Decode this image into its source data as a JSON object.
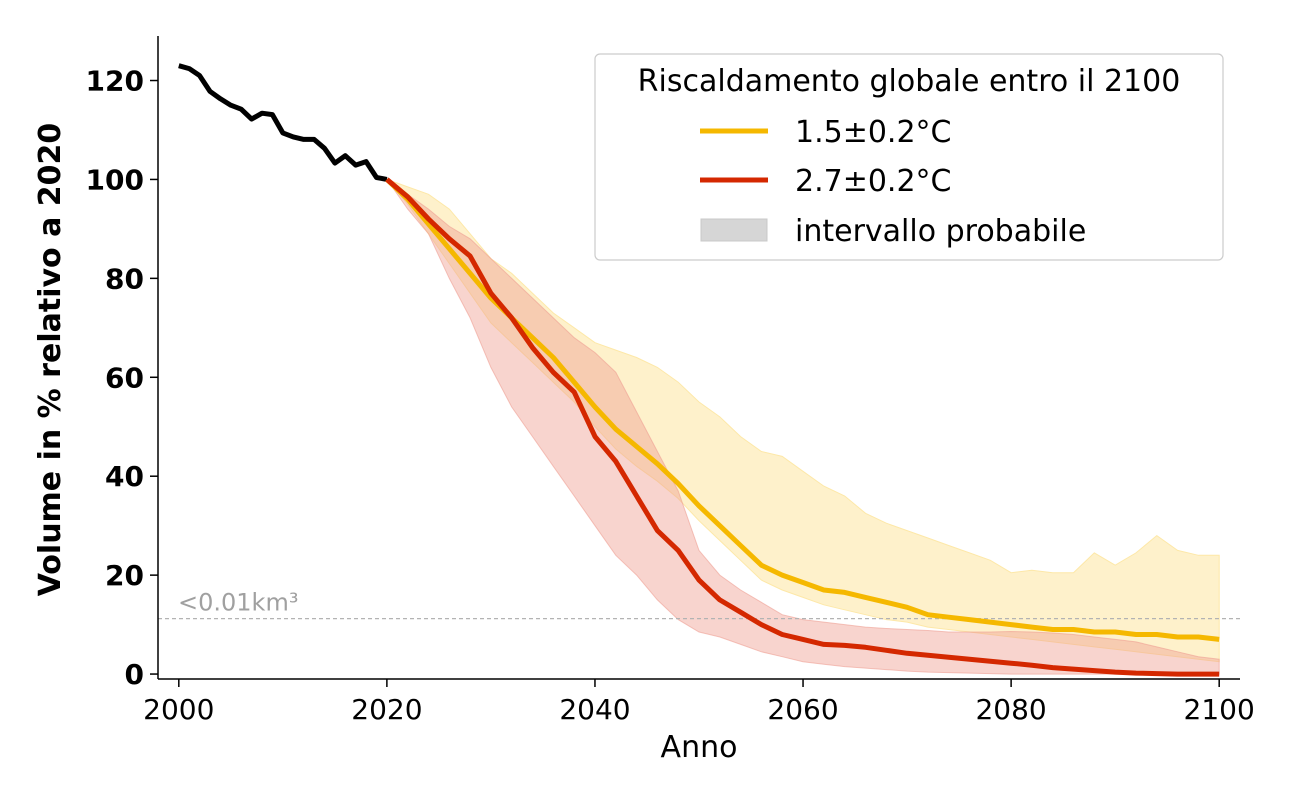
{
  "chart_data": {
    "type": "line",
    "xlabel": "Anno",
    "ylabel": "Volume in % relativo a 2020",
    "xlim": [
      1998,
      2102
    ],
    "ylim": [
      -1,
      129
    ],
    "xticks": [
      2000,
      2020,
      2040,
      2060,
      2080,
      2100
    ],
    "yticks": [
      0,
      20,
      40,
      60,
      80,
      100,
      120
    ],
    "grid": false,
    "legend": {
      "title": "Riscaldamento globale entro il 2100",
      "placement": "top-right",
      "range_label": "intervallo probabile"
    },
    "threshold": {
      "y": 11.2,
      "label": "<0.01km³"
    },
    "colors": {
      "historical": "#000000",
      "scenario_low": "#f5b800",
      "scenario_high": "#d42800",
      "band_low": "#fde8a8",
      "band_high": "#ef9f92",
      "legend_patch": "#d6d6d6",
      "threshold": "#b3b3b3"
    },
    "historical": {
      "x": [
        2000,
        2001,
        2002,
        2003,
        2004,
        2005,
        2006,
        2007,
        2008,
        2009,
        2010,
        2011,
        2012,
        2013,
        2014,
        2015,
        2016,
        2017,
        2018,
        2019,
        2020
      ],
      "y": [
        123,
        122.4,
        121,
        117.8,
        116.3,
        115,
        114.2,
        112.2,
        113.4,
        113.1,
        109.4,
        108.6,
        108.1,
        108.1,
        106.3,
        103.3,
        104.8,
        102.9,
        103.6,
        100.4,
        100
      ]
    },
    "series": [
      {
        "name": "1.5±0.2°C",
        "x": [
          2020,
          2022,
          2024,
          2026,
          2028,
          2030,
          2032,
          2034,
          2036,
          2038,
          2040,
          2042,
          2044,
          2046,
          2048,
          2050,
          2052,
          2054,
          2056,
          2058,
          2060,
          2062,
          2064,
          2066,
          2068,
          2070,
          2072,
          2074,
          2076,
          2078,
          2080,
          2082,
          2084,
          2086,
          2088,
          2090,
          2092,
          2094,
          2096,
          2098,
          2100
        ],
        "y": [
          100,
          96,
          91,
          86,
          81,
          76,
          72,
          68,
          64,
          59,
          54,
          49.5,
          46,
          42.5,
          38.5,
          34,
          30,
          26,
          22,
          20,
          18.5,
          17,
          16.5,
          15.5,
          14.5,
          13.5,
          12,
          11.5,
          11,
          10.5,
          10,
          9.5,
          9,
          9,
          8.5,
          8.5,
          8,
          8,
          7.5,
          7.5,
          7
        ],
        "band_lower": [
          100,
          95,
          89,
          83,
          77,
          71,
          67,
          63,
          59,
          55,
          50,
          45.5,
          42,
          39,
          35.5,
          31,
          27,
          23,
          19,
          17,
          15.5,
          14,
          13,
          12,
          11,
          10.5,
          9.5,
          9,
          8.5,
          8,
          7.5,
          7,
          6.5,
          6,
          5.5,
          5,
          4.5,
          4,
          3.5,
          3,
          2.5
        ],
        "band_upper": [
          100,
          98.5,
          97,
          94,
          89,
          84,
          81,
          77,
          73,
          70,
          67,
          65.5,
          64,
          62,
          59,
          55,
          52,
          48,
          45,
          44,
          41,
          38,
          36,
          32.5,
          30.5,
          29,
          27.5,
          26,
          24.5,
          23,
          20.5,
          21,
          20.5,
          20.5,
          24.5,
          22,
          24.5,
          28,
          25,
          24,
          24
        ]
      },
      {
        "name": "2.7±0.2°C",
        "x": [
          2020,
          2022,
          2024,
          2026,
          2028,
          2030,
          2032,
          2034,
          2036,
          2038,
          2040,
          2042,
          2044,
          2046,
          2048,
          2050,
          2052,
          2054,
          2056,
          2058,
          2060,
          2062,
          2064,
          2066,
          2068,
          2070,
          2072,
          2074,
          2076,
          2078,
          2080,
          2082,
          2084,
          2086,
          2088,
          2090,
          2092,
          2094,
          2096,
          2098,
          2100
        ],
        "y": [
          100,
          96.5,
          92,
          88,
          84.5,
          77,
          72,
          66,
          61,
          57,
          48,
          43,
          36,
          29,
          25,
          19,
          15,
          12.5,
          10,
          8,
          7,
          6,
          5.8,
          5.4,
          4.8,
          4.2,
          3.8,
          3.4,
          3,
          2.6,
          2.2,
          1.8,
          1.3,
          1,
          0.7,
          0.4,
          0.2,
          0.1,
          0,
          0,
          0
        ],
        "band_lower": [
          100,
          94,
          89,
          80,
          72,
          62,
          54,
          48,
          42,
          36,
          30,
          24,
          20,
          15,
          11,
          8.5,
          7.5,
          6,
          4.5,
          3.5,
          2.5,
          2,
          1.5,
          1.2,
          0.9,
          0.6,
          0.4,
          0.3,
          0.2,
          0.1,
          0,
          0,
          0,
          0,
          0,
          0,
          0,
          0,
          0,
          0,
          0
        ],
        "band_upper": [
          100,
          97,
          94,
          90.5,
          88,
          84,
          80,
          76,
          72,
          68,
          65,
          61,
          53,
          45,
          37,
          25,
          20,
          17,
          14.5,
          12,
          11,
          10.5,
          10,
          9.5,
          9.2,
          9,
          8.8,
          8.5,
          8.5,
          8.5,
          8.6,
          8.5,
          8.3,
          8,
          7.5,
          7,
          6.5,
          5.5,
          4.5,
          3.5,
          3
        ]
      }
    ]
  }
}
